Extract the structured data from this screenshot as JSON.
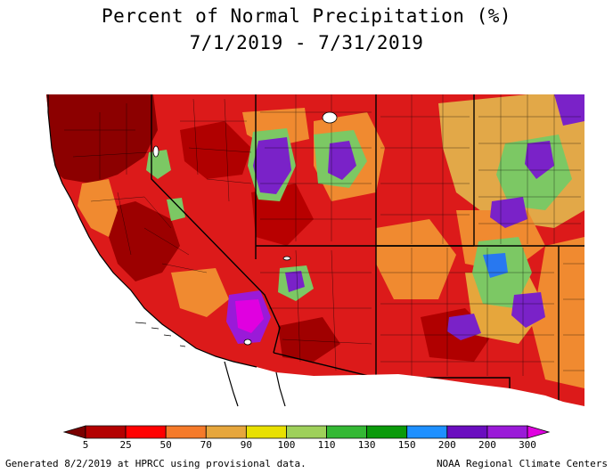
{
  "header": {
    "title_line1": "Percent of Normal Precipitation (%)",
    "title_line2": "7/1/2019 - 7/31/2019"
  },
  "legend": {
    "breaks": [
      "5",
      "25",
      "50",
      "70",
      "90",
      "100",
      "110",
      "130",
      "150",
      "200",
      "200",
      "300"
    ],
    "colors": [
      "#7a0000",
      "#b30000",
      "#ff0000",
      "#f57a2a",
      "#e6a63c",
      "#e8e000",
      "#9ed05a",
      "#34b834",
      "#0a9a0a",
      "#1e90ff",
      "#6a0dbf",
      "#9a1ad8",
      "#e000e0"
    ]
  },
  "footer": {
    "left": "Generated 8/2/2019 at HPRCC using provisional data.",
    "right": "NOAA Regional Climate Centers"
  },
  "palette": {
    "ocean": "#ffffff",
    "base_dry": "#d81818",
    "dark_dry": "#8a0000",
    "orange": "#f08a30",
    "tan": "#e2a848",
    "green": "#7cc864",
    "purple": "#7a22c8",
    "magenta": "#e000e0",
    "blue": "#2878f0",
    "border": "#000000"
  }
}
